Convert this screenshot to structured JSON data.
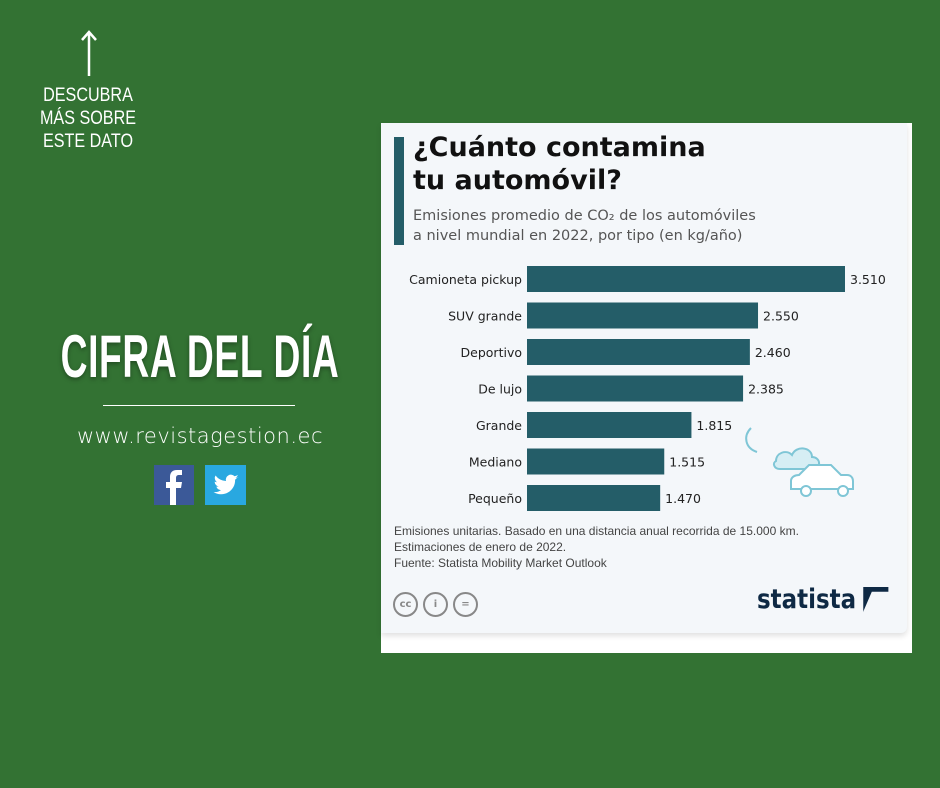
{
  "left_panel": {
    "discover_text": "DESCUBRA MÁS SOBRE ESTE DATO",
    "headline": "CIFRA DEL DÍA",
    "website": "www.revistagestion.ec",
    "social": [
      "facebook-icon",
      "twitter-icon"
    ]
  },
  "colors": {
    "background": "#337233",
    "bar": "#245d68",
    "brand": "#0e2944"
  },
  "chart_data": {
    "type": "bar",
    "orientation": "horizontal",
    "title": "¿Cuánto contamina tu automóvil?",
    "title_line1": "¿Cuánto contamina",
    "title_line2": "tu automóvil?",
    "subtitle_line1": "Emisiones promedio de CO₂ de los automóviles",
    "subtitle_line2": "a nivel mundial en 2022, por tipo (en kg/año)",
    "categories": [
      "Camioneta pickup",
      "SUV grande",
      "Deportivo",
      "De lujo",
      "Grande",
      "Mediano",
      "Pequeño"
    ],
    "values": [
      3510,
      2550,
      2460,
      2385,
      1815,
      1515,
      1470
    ],
    "value_labels": [
      "3.510",
      "2.550",
      "2.460",
      "2.385",
      "1.815",
      "1.515",
      "1.470"
    ],
    "xlim": [
      0,
      3510
    ],
    "grid": false,
    "notes": [
      "Emisiones unitarias. Basado en una distancia anual recorrida de 15.000 km.",
      "Estimaciones de enero de 2022.",
      "Fuente: Statista Mobility Market Outlook"
    ],
    "brand": "statista"
  }
}
